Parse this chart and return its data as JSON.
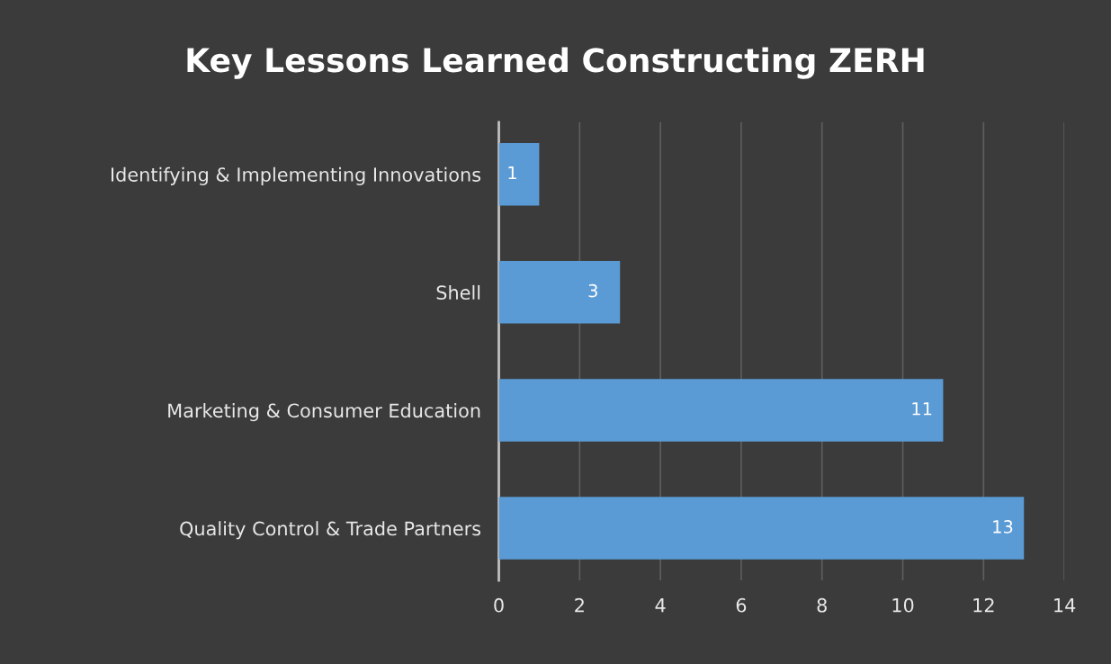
{
  "chart_data": {
    "type": "bar",
    "orientation": "horizontal",
    "title": "Key Lessons Learned Constructing ZERH",
    "categories": [
      "Identifying & Implementing Innovations",
      "Shell",
      "Marketing & Consumer Education",
      "Quality Control & Trade Partners"
    ],
    "values": [
      1,
      3,
      11,
      13
    ],
    "color": "#5b9bd5",
    "xlim": [
      0,
      14
    ],
    "xticks": [
      0,
      2,
      4,
      6,
      8,
      10,
      12,
      14
    ],
    "grid": "x",
    "data_labels": true
  }
}
